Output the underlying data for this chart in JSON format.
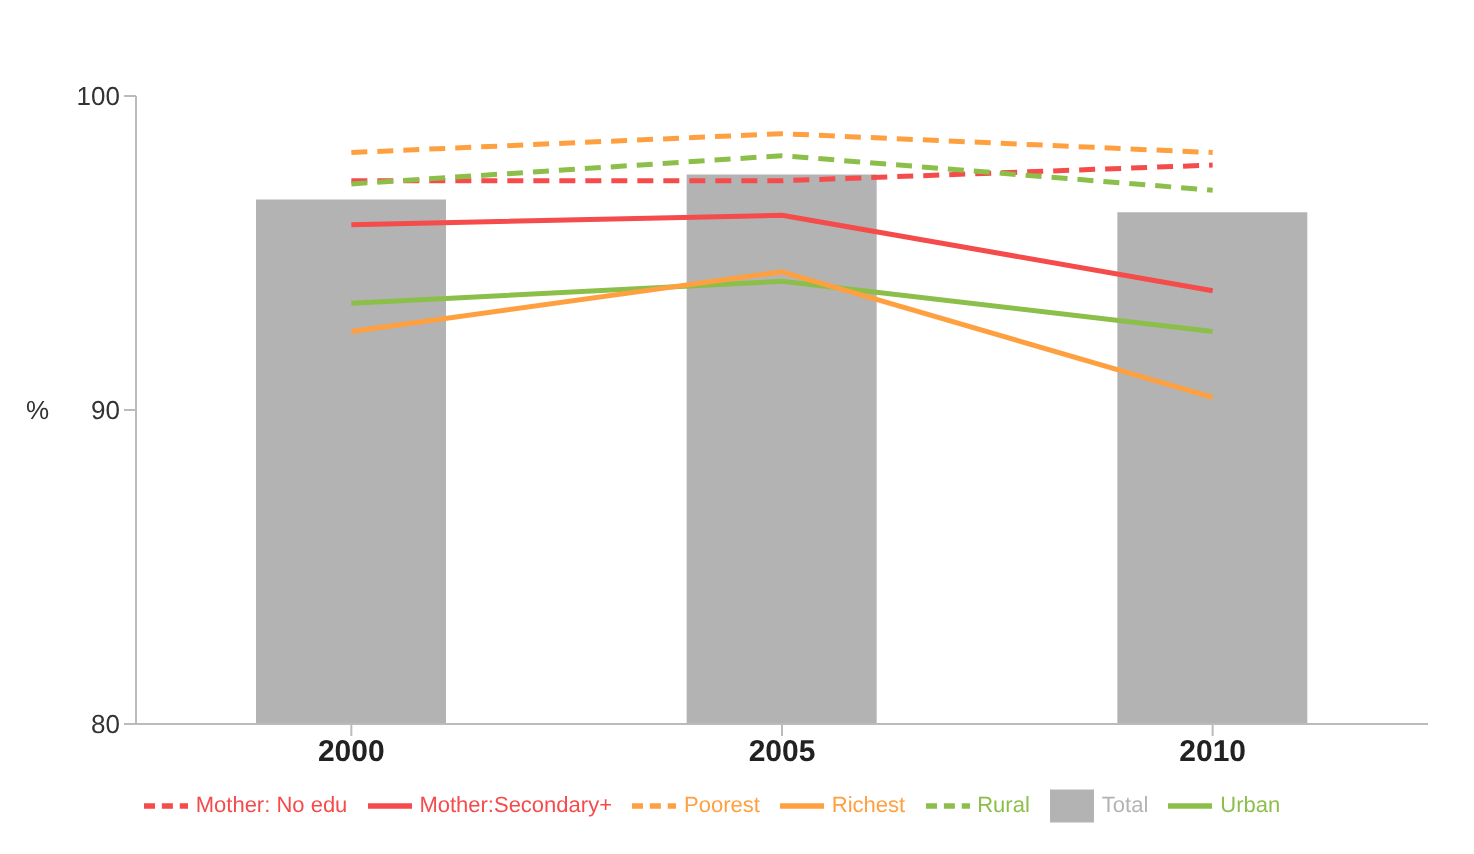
{
  "chart_data": {
    "type": "line",
    "ylabel": "%",
    "categories": [
      "2000",
      "2005",
      "2010"
    ],
    "ylim": [
      80,
      100
    ],
    "yticks": [
      80,
      90,
      100
    ],
    "grid": false,
    "legend": "bottom",
    "marker": "none",
    "series": [
      {
        "name": "Total",
        "type": "bar",
        "color": "#b3b3b3",
        "values": [
          96.7,
          97.5,
          96.3
        ]
      },
      {
        "name": "Mother: No edu",
        "color": "#f54b4b",
        "line_style": "dashed",
        "values": [
          97.3,
          97.3,
          97.8
        ]
      },
      {
        "name": "Mother:Secondary+",
        "color": "#f54b4b",
        "line_style": "solid",
        "values": [
          95.9,
          96.2,
          93.8
        ]
      },
      {
        "name": "Urban",
        "color": "#8cbf4a",
        "line_style": "solid",
        "values": [
          93.4,
          94.1,
          92.5
        ]
      },
      {
        "name": "Rural",
        "color": "#8cbf4a",
        "line_style": "dashed",
        "values": [
          97.2,
          98.1,
          97.0
        ]
      },
      {
        "name": "Poorest",
        "color": "#ffa040",
        "line_style": "dashed",
        "values": [
          98.2,
          98.8,
          98.2
        ]
      },
      {
        "name": "Richest",
        "color": "#ffa040",
        "line_style": "solid",
        "values": [
          92.5,
          94.4,
          90.4
        ]
      }
    ]
  }
}
